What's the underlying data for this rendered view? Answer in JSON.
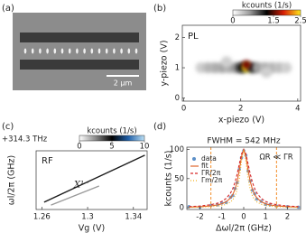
{
  "panel_labels": [
    "(a)",
    "(b)",
    "(c)",
    "(d)"
  ],
  "image": {
    "scale_bar": "2 µm"
  },
  "chart_data": [
    {
      "type": "heatmap",
      "label": "PL",
      "colorbar_title": "kcounts (1/s)",
      "clim": [
        0,
        2.5
      ],
      "colorbar_ticks": [
        0,
        1.5,
        2.5
      ],
      "colormap": [
        "#ffffff",
        "#9a9a9a",
        "#000000",
        "#d81e05",
        "#ffe81a"
      ],
      "xlabel": "x-piezo (V)",
      "ylabel": "y-piezo (V)",
      "xlim": [
        -0.05,
        4.1
      ],
      "ylim": [
        -0.1,
        2.4
      ],
      "xticks": [
        0,
        2,
        4
      ],
      "yticks": [
        0,
        1,
        2
      ],
      "x": [
        0.6,
        0.85,
        1.1,
        1.35,
        1.6,
        1.85,
        2.05,
        2.2,
        2.4,
        2.6,
        2.85,
        3.1,
        3.35,
        3.6,
        1.5,
        2.9,
        2.2
      ],
      "y": [
        1,
        1,
        1,
        1,
        1,
        1,
        1,
        1,
        1,
        1,
        1,
        1,
        1,
        1,
        1.2,
        0.85,
        1.1
      ],
      "values": [
        0.3,
        0.45,
        0.5,
        0.55,
        0.5,
        0.7,
        1.2,
        2.5,
        1.1,
        0.6,
        0.5,
        0.45,
        0.4,
        0.3,
        0.3,
        0.3,
        1.6
      ]
    },
    {
      "type": "line",
      "label": "RF",
      "offset": "+314.3 THz",
      "annotation": "X¹⁻",
      "colorbar_title": "kcounts (1/s)",
      "clim": [
        0,
        10
      ],
      "colorbar_ticks": [
        0,
        5,
        10
      ],
      "colormap": [
        "#ffffff",
        "#8a8a8a",
        "#000000",
        "#1f5fa8",
        "#bde0f5"
      ],
      "xlabel": "Vg (V)",
      "ylabel": "ωl/2π (GHz)",
      "xlim": [
        1.255,
        1.352
      ],
      "ylim": [
        -20,
        20
      ],
      "xticks": [
        1.26,
        1.3,
        1.34
      ],
      "series": [
        {
          "color": "#1a1a1a",
          "x": [
            1.262,
            1.35
          ],
          "values": [
            -15,
            17
          ]
        },
        {
          "color": "#9a9a9a",
          "x": [
            1.268,
            1.31
          ],
          "values": [
            -17,
            -4
          ]
        }
      ]
    },
    {
      "type": "line",
      "title": "FWHM = 542 MHz",
      "annotation": "ΩR ≪ ΓR",
      "xlabel": "Δωl/2π (GHz)",
      "ylabel": "kcounts (1/s)",
      "xlim": [
        -2.6,
        2.6
      ],
      "ylim": [
        -3,
        104
      ],
      "xticks": [
        -2,
        -1,
        0,
        1,
        2
      ],
      "yticks": [
        0,
        50,
        100
      ],
      "vlines": [
        -1.5,
        1.5
      ],
      "vline_color": "#f28c28",
      "x": [
        -2.5,
        -2,
        -1.5,
        -1.2,
        -1,
        -0.8,
        -0.6,
        -0.5,
        -0.4,
        -0.3,
        -0.2,
        -0.1,
        0,
        0.1,
        0.2,
        0.3,
        0.4,
        0.5,
        0.6,
        0.8,
        1,
        1.2,
        1.5,
        2,
        2.5
      ],
      "series": [
        {
          "name": "data",
          "color": "#5b8fc7",
          "marker": "circle",
          "values": [
            2,
            1,
            4,
            5,
            8,
            9,
            18,
            21,
            33,
            43,
            66,
            86,
            98,
            90,
            63,
            46,
            30,
            24,
            15,
            11,
            6,
            5,
            3,
            2,
            1
          ]
        },
        {
          "name": "fit",
          "color": "#e0662b",
          "values": [
            1.2,
            1.8,
            3.2,
            4.9,
            6.8,
            10.3,
            16.9,
            22.7,
            31.5,
            44.9,
            64.7,
            88,
            100,
            88,
            64.7,
            44.9,
            31.5,
            22.7,
            16.9,
            10.3,
            6.8,
            4.9,
            3.2,
            1.8,
            1.2
          ]
        },
        {
          "name": "ΓR/2π",
          "color": "#d62728",
          "dash": "3,2",
          "values": [
            1.9,
            3,
            5.2,
            7.8,
            10.9,
            16,
            25.4,
            32.9,
            43.4,
            57.6,
            75.4,
            92.5,
            100,
            92.5,
            75.4,
            57.6,
            43.4,
            32.9,
            25.4,
            16,
            10.9,
            7.8,
            5.2,
            3,
            1.9
          ]
        },
        {
          "name": "Γm/2π",
          "color": "#f2b01e",
          "dash": "1,2",
          "values": [
            0.6,
            1,
            1.8,
            2.7,
            3.8,
            5.9,
            10,
            13.8,
            20,
            30.8,
            50,
            80,
            100,
            80,
            50,
            30.8,
            20,
            13.8,
            10,
            5.9,
            3.8,
            2.7,
            1.8,
            1,
            0.6
          ]
        }
      ]
    }
  ]
}
